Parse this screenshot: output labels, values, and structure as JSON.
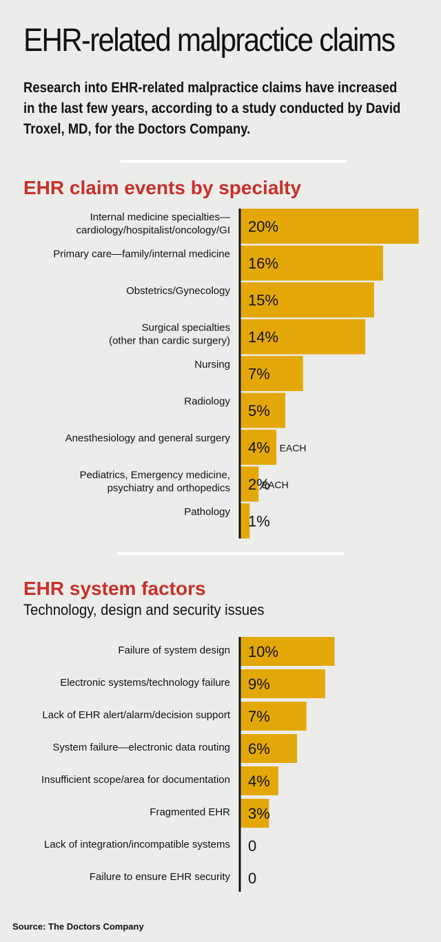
{
  "title": "EHR-related malpractice claims",
  "subtitle": "Research into EHR-related malpractice claims have increased in the last few years, according to a study conducted by David Troxel, MD, for the Doctors Company.",
  "colors": {
    "bar": "#e3a808",
    "heading": "#c8302a",
    "background": "#ececea",
    "divider": "#ffffff"
  },
  "chart_data": [
    {
      "type": "bar",
      "orientation": "horizontal",
      "title": "EHR claim events by specialty",
      "subtitle": "",
      "unit": "%",
      "categories": [
        [
          "Internal medicine specialties—",
          "cardiology/hospitalist/oncology/GI"
        ],
        [
          "Primary care—family/internal medicine"
        ],
        [
          "Obstetrics/Gynecology"
        ],
        [
          "Surgical specialties",
          "(other than cardic surgery)"
        ],
        [
          "Nursing"
        ],
        [
          "Radiology"
        ],
        [
          "Anesthesiology and general surgery"
        ],
        [
          "Pediatrics, Emergency medicine,",
          "psychiatry and orthopedics"
        ],
        [
          "Pathology"
        ]
      ],
      "values": [
        20,
        16,
        15,
        14,
        7,
        5,
        4,
        2,
        1
      ],
      "value_labels": [
        "20%",
        "16%",
        "15%",
        "14%",
        "7%",
        "5%",
        "4%",
        "2%",
        "1%"
      ],
      "notes": [
        "",
        "",
        "",
        "",
        "",
        "",
        "EACH",
        "EACH",
        ""
      ],
      "xlim": [
        0,
        20
      ]
    },
    {
      "type": "bar",
      "orientation": "horizontal",
      "title": "EHR system factors",
      "subtitle": "Technology, design and security issues",
      "unit": "%",
      "categories": [
        [
          "Failure of system design"
        ],
        [
          "Electronic systems/technology failure"
        ],
        [
          "Lack of EHR alert/alarm/decision support"
        ],
        [
          "System failure—electronic data routing"
        ],
        [
          "Insufficient scope/area for documentation"
        ],
        [
          "Fragmented EHR"
        ],
        [
          "Lack of integration/incompatible systems"
        ],
        [
          "Failure to ensure EHR security"
        ]
      ],
      "values": [
        10,
        9,
        7,
        6,
        4,
        3,
        0,
        0
      ],
      "value_labels": [
        "10%",
        "9%",
        "7%",
        "6%",
        "4%",
        "3%",
        "0",
        "0"
      ],
      "notes": [
        "",
        "",
        "",
        "",
        "",
        "",
        "",
        ""
      ],
      "xlim": [
        0,
        20
      ]
    }
  ],
  "source": "Source: The Doctors Company"
}
